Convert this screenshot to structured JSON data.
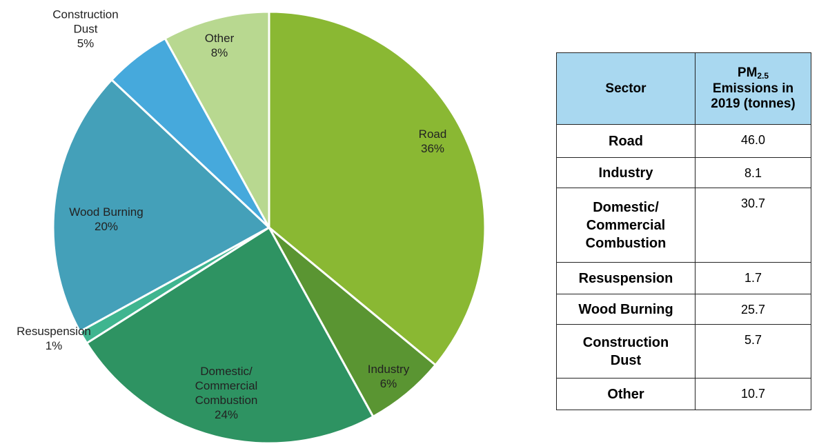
{
  "chart_data": {
    "type": "pie",
    "categories": [
      "Road",
      "Industry",
      "Domestic/ Commercial Combustion",
      "Resuspension",
      "Wood Burning",
      "Construction Dust",
      "Other"
    ],
    "values": [
      36,
      6,
      24,
      1,
      20,
      5,
      8
    ],
    "value_labels": [
      "36%",
      "6%",
      "24%",
      "1%",
      "20%",
      "5%",
      "8%"
    ],
    "colors": [
      "#8ab833",
      "#5a9532",
      "#2e9362",
      "#3fb58f",
      "#44a0b9",
      "#46a9dc",
      "#b8d890"
    ]
  },
  "table": {
    "header": [
      "Sector",
      [
        "PM",
        "2.5",
        "Emissions in 2019 (tonnes)"
      ]
    ],
    "rows": [
      [
        "Road",
        "46.0"
      ],
      [
        "Industry",
        "8.1"
      ],
      [
        "Domestic/ Commercial Combustion",
        "30.7"
      ],
      [
        "Resuspension",
        "1.7"
      ],
      [
        "Wood Burning",
        "25.7"
      ],
      [
        "Construction Dust",
        "5.7"
      ],
      [
        "Other",
        "10.7"
      ]
    ]
  }
}
